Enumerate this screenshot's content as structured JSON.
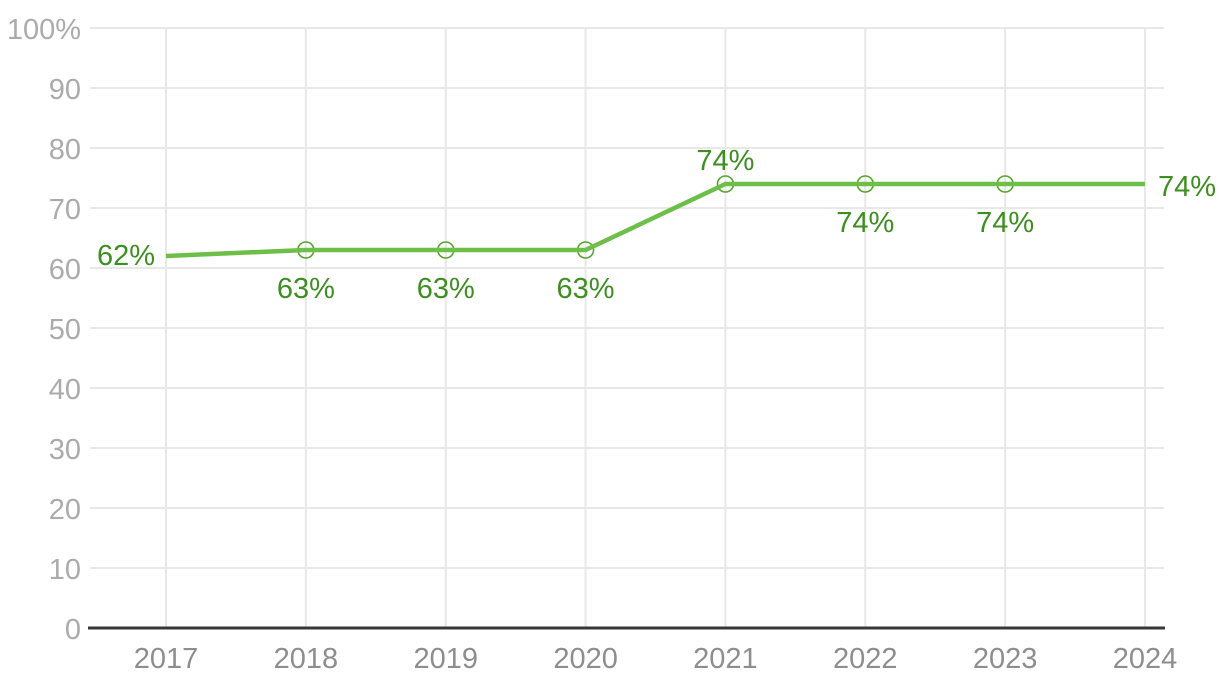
{
  "chart_data": {
    "type": "line",
    "title": "",
    "xlabel": "",
    "ylabel": "",
    "categories": [
      "2017",
      "2018",
      "2019",
      "2020",
      "2021",
      "2022",
      "2023",
      "2024"
    ],
    "series": [
      {
        "name": "percentage-series",
        "values": [
          62,
          63,
          63,
          63,
          74,
          74,
          74,
          74
        ]
      }
    ],
    "data_labels": [
      "62%",
      "63%",
      "63%",
      "63%",
      "74%",
      "74%",
      "74%",
      "74%"
    ],
    "data_label_positions": [
      "left",
      "below",
      "below",
      "below",
      "above",
      "below",
      "below",
      "right"
    ],
    "point_markers": [
      false,
      true,
      true,
      true,
      true,
      true,
      true,
      false
    ],
    "ylim": [
      0,
      100
    ],
    "ytick_interval": 10,
    "ytick_labels": [
      "0",
      "10",
      "20",
      "30",
      "40",
      "50",
      "60",
      "70",
      "80",
      "90",
      "100%"
    ],
    "grid": "both",
    "legend": "none",
    "colors": {
      "line": "#6ebf49",
      "marker_stroke": "#55a42e",
      "marker_fill": "none",
      "data_label": "#3e8e22",
      "grid": "#e8e8e8",
      "axis": "#383838",
      "ytick_text": "#ababab",
      "xtick_text": "#8e8e8e",
      "background": "#ffffff"
    }
  }
}
